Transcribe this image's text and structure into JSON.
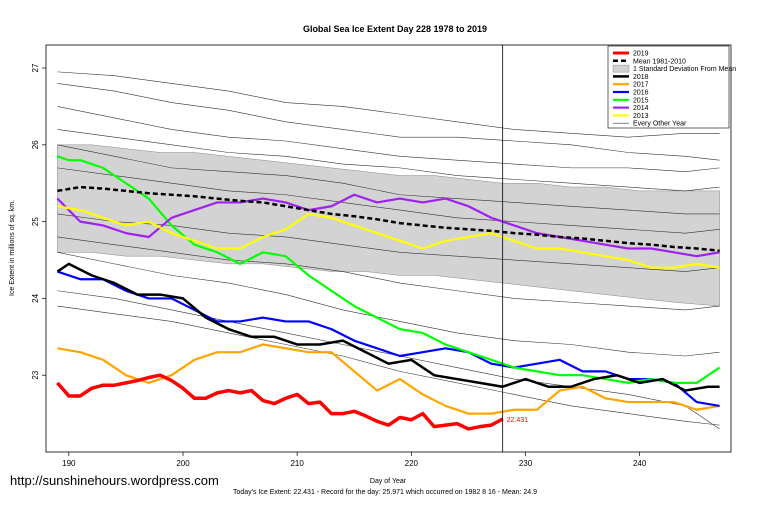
{
  "chart_data": {
    "type": "line",
    "title": "Global Sea Ice Extent Day 228 1978 to 2019",
    "xlabel": "Day of Year",
    "ylabel": "Ice Extent in millions of sq. km.",
    "xlim": [
      188,
      248
    ],
    "ylim": [
      22,
      27.3
    ],
    "x_ticks": [
      190,
      200,
      210,
      220,
      230,
      240
    ],
    "y_ticks": [
      23,
      24,
      25,
      26,
      27
    ],
    "grid": false,
    "legend_position": "top-right",
    "marker_day": 228,
    "credit": "http://sunshinehours.wordpress.com",
    "footer": "Today's Ice Extent: 22.431  -  Record for the day: 25.971 which occurred on 1982 8 16  -  Mean: 24.9",
    "current_value_label": "22.431",
    "band": {
      "name": "1 Standard Deviation From Mean",
      "color": "#d3d3d3",
      "x": [
        189,
        192,
        195,
        198,
        201,
        204,
        207,
        210,
        213,
        216,
        219,
        222,
        225,
        228,
        231,
        234,
        237,
        240,
        243,
        247
      ],
      "upper": [
        26.0,
        26.0,
        25.95,
        25.9,
        25.9,
        25.85,
        25.8,
        25.75,
        25.7,
        25.65,
        25.6,
        25.6,
        25.55,
        25.5,
        25.5,
        25.45,
        25.45,
        25.4,
        25.4,
        25.4
      ],
      "lower": [
        24.6,
        24.6,
        24.55,
        24.55,
        24.5,
        24.45,
        24.45,
        24.4,
        24.35,
        24.35,
        24.3,
        24.3,
        24.25,
        24.2,
        24.15,
        24.1,
        24.05,
        24.0,
        23.95,
        23.9
      ]
    },
    "series": [
      {
        "name": "2019",
        "color": "#ff0000",
        "width": 3.5,
        "dash": "",
        "x": [
          189,
          190,
          191,
          192,
          193,
          194,
          195,
          196,
          197,
          198,
          199,
          200,
          201,
          202,
          203,
          204,
          205,
          206,
          207,
          208,
          209,
          210,
          211,
          212,
          213,
          214,
          215,
          216,
          217,
          218,
          219,
          220,
          221,
          222,
          223,
          224,
          225,
          226,
          227,
          228
        ],
        "y": [
          22.9,
          22.73,
          22.73,
          22.83,
          22.87,
          22.87,
          22.9,
          22.93,
          22.97,
          23.0,
          22.93,
          22.83,
          22.7,
          22.7,
          22.77,
          22.8,
          22.77,
          22.8,
          22.67,
          22.63,
          22.7,
          22.75,
          22.63,
          22.65,
          22.5,
          22.5,
          22.53,
          22.47,
          22.4,
          22.35,
          22.45,
          22.42,
          22.5,
          22.33,
          22.35,
          22.37,
          22.3,
          22.33,
          22.35,
          22.43
        ]
      },
      {
        "name": "Mean 1981-2010",
        "color": "#000000",
        "width": 2.5,
        "dash": "5,3",
        "x": [
          189,
          191,
          193,
          195,
          197,
          199,
          201,
          203,
          205,
          207,
          209,
          211,
          213,
          215,
          217,
          219,
          221,
          223,
          225,
          227,
          229,
          231,
          233,
          235,
          237,
          239,
          241,
          243,
          245,
          247
        ],
        "y": [
          25.4,
          25.45,
          25.43,
          25.4,
          25.37,
          25.35,
          25.33,
          25.3,
          25.27,
          25.25,
          25.2,
          25.15,
          25.1,
          25.07,
          25.03,
          24.98,
          24.95,
          24.92,
          24.9,
          24.88,
          24.85,
          24.83,
          24.8,
          24.78,
          24.75,
          24.72,
          24.7,
          24.67,
          24.65,
          24.62
        ]
      },
      {
        "name": "2018",
        "color": "#000000",
        "width": 2.5,
        "dash": "",
        "x": [
          189,
          190,
          192,
          194,
          196,
          198,
          200,
          202,
          204,
          206,
          208,
          210,
          212,
          214,
          216,
          218,
          220,
          221,
          222,
          224,
          226,
          228,
          230,
          232,
          234,
          236,
          238,
          240,
          242,
          244,
          246,
          247
        ],
        "y": [
          24.35,
          24.45,
          24.3,
          24.2,
          24.05,
          24.05,
          24.0,
          23.75,
          23.6,
          23.5,
          23.5,
          23.4,
          23.4,
          23.45,
          23.3,
          23.15,
          23.2,
          23.1,
          23.0,
          22.95,
          22.9,
          22.85,
          22.95,
          22.85,
          22.85,
          22.95,
          23.0,
          22.9,
          22.95,
          22.8,
          22.85,
          22.85
        ]
      },
      {
        "name": "2017",
        "color": "#ffa500",
        "width": 2.2,
        "dash": "",
        "x": [
          189,
          191,
          193,
          195,
          197,
          199,
          201,
          203,
          205,
          207,
          209,
          211,
          213,
          215,
          217,
          219,
          221,
          223,
          225,
          227,
          229,
          231,
          233,
          235,
          237,
          239,
          241,
          243,
          245,
          247
        ],
        "y": [
          23.35,
          23.3,
          23.2,
          23.0,
          22.9,
          23.0,
          23.2,
          23.3,
          23.3,
          23.4,
          23.35,
          23.3,
          23.3,
          23.05,
          22.8,
          22.95,
          22.75,
          22.6,
          22.5,
          22.5,
          22.55,
          22.55,
          22.8,
          22.85,
          22.7,
          22.65,
          22.65,
          22.65,
          22.55,
          22.6
        ]
      },
      {
        "name": "2016",
        "color": "#0000ff",
        "width": 2.2,
        "dash": "",
        "x": [
          189,
          191,
          193,
          195,
          197,
          199,
          201,
          203,
          205,
          207,
          209,
          211,
          213,
          215,
          217,
          219,
          221,
          223,
          225,
          227,
          229,
          231,
          233,
          235,
          237,
          239,
          241,
          243,
          245,
          247
        ],
        "y": [
          24.35,
          24.25,
          24.25,
          24.1,
          24.0,
          24.0,
          23.85,
          23.7,
          23.7,
          23.75,
          23.7,
          23.7,
          23.6,
          23.45,
          23.35,
          23.25,
          23.3,
          23.35,
          23.3,
          23.15,
          23.1,
          23.15,
          23.2,
          23.05,
          23.05,
          22.95,
          22.95,
          22.9,
          22.65,
          22.6
        ]
      },
      {
        "name": "2015",
        "color": "#00ff00",
        "width": 2.2,
        "dash": "",
        "x": [
          189,
          190,
          191,
          193,
          195,
          197,
          199,
          201,
          203,
          205,
          207,
          209,
          211,
          213,
          215,
          217,
          219,
          221,
          223,
          225,
          227,
          229,
          231,
          233,
          235,
          237,
          239,
          241,
          243,
          245,
          247
        ],
        "y": [
          25.85,
          25.8,
          25.8,
          25.7,
          25.5,
          25.3,
          24.95,
          24.7,
          24.6,
          24.45,
          24.6,
          24.55,
          24.3,
          24.1,
          23.9,
          23.75,
          23.6,
          23.55,
          23.4,
          23.3,
          23.2,
          23.1,
          23.05,
          23.0,
          23.0,
          22.95,
          22.9,
          22.95,
          22.9,
          22.9,
          23.1
        ]
      },
      {
        "name": "2014",
        "color": "#a020f0",
        "width": 2.2,
        "dash": "",
        "x": [
          189,
          191,
          193,
          195,
          197,
          199,
          201,
          203,
          205,
          207,
          209,
          211,
          213,
          215,
          217,
          219,
          221,
          223,
          225,
          227,
          229,
          231,
          233,
          235,
          237,
          239,
          241,
          243,
          245,
          247
        ],
        "y": [
          25.3,
          25.0,
          24.95,
          24.85,
          24.8,
          25.05,
          25.15,
          25.25,
          25.25,
          25.3,
          25.25,
          25.15,
          25.2,
          25.35,
          25.25,
          25.3,
          25.25,
          25.3,
          25.2,
          25.05,
          24.95,
          24.85,
          24.8,
          24.75,
          24.7,
          24.65,
          24.65,
          24.6,
          24.55,
          24.6
        ]
      },
      {
        "name": "2013",
        "color": "#ffff00",
        "width": 2.2,
        "dash": "",
        "x": [
          189,
          191,
          193,
          195,
          197,
          199,
          201,
          203,
          205,
          207,
          209,
          211,
          213,
          215,
          217,
          219,
          221,
          223,
          225,
          227,
          229,
          231,
          233,
          235,
          237,
          239,
          241,
          243,
          245,
          247
        ],
        "y": [
          25.2,
          25.15,
          25.05,
          24.95,
          25.0,
          24.85,
          24.75,
          24.65,
          24.65,
          24.8,
          24.9,
          25.1,
          25.05,
          24.95,
          24.85,
          24.75,
          24.65,
          24.75,
          24.8,
          24.85,
          24.75,
          24.65,
          24.65,
          24.6,
          24.55,
          24.5,
          24.4,
          24.4,
          24.45,
          24.4
        ]
      },
      {
        "name": "Every Other Year",
        "color": "#333333",
        "width": 0.6,
        "dash": "",
        "x": [
          189,
          194,
          199,
          204,
          209,
          214,
          219,
          224,
          229,
          234,
          239,
          244,
          247
        ],
        "y": [
          26.8,
          26.7,
          26.55,
          26.45,
          26.3,
          26.2,
          26.1,
          26.1,
          26.05,
          26.0,
          25.9,
          25.85,
          25.8
        ]
      },
      {
        "name": "",
        "color": "#333333",
        "width": 0.6,
        "dash": "",
        "x": [
          189,
          194,
          199,
          204,
          209,
          214,
          219,
          224,
          229,
          234,
          239,
          244,
          247
        ],
        "y": [
          26.95,
          26.9,
          26.8,
          26.7,
          26.55,
          26.5,
          26.4,
          26.3,
          26.2,
          26.15,
          26.1,
          26.15,
          26.15
        ]
      },
      {
        "name": "",
        "color": "#333333",
        "width": 0.6,
        "dash": "",
        "x": [
          189,
          194,
          199,
          204,
          209,
          214,
          219,
          224,
          229,
          234,
          239,
          244,
          247
        ],
        "y": [
          26.5,
          26.35,
          26.2,
          26.1,
          26.05,
          25.95,
          25.85,
          25.8,
          25.75,
          25.7,
          25.7,
          25.65,
          25.7
        ]
      },
      {
        "name": "",
        "color": "#333333",
        "width": 0.6,
        "dash": "",
        "x": [
          189,
          194,
          199,
          204,
          209,
          214,
          219,
          224,
          229,
          234,
          239,
          244,
          247
        ],
        "y": [
          26.2,
          26.1,
          26.0,
          25.9,
          25.85,
          25.75,
          25.7,
          25.6,
          25.55,
          25.5,
          25.45,
          25.4,
          25.45
        ]
      },
      {
        "name": "",
        "color": "#333333",
        "width": 0.6,
        "dash": "",
        "x": [
          189,
          194,
          199,
          204,
          209,
          214,
          219,
          224,
          229,
          234,
          239,
          244,
          247
        ],
        "y": [
          26.0,
          25.85,
          25.7,
          25.65,
          25.6,
          25.5,
          25.35,
          25.3,
          25.25,
          25.2,
          25.15,
          25.1,
          25.1
        ]
      },
      {
        "name": "",
        "color": "#333333",
        "width": 0.6,
        "dash": "",
        "x": [
          189,
          194,
          199,
          204,
          209,
          214,
          219,
          224,
          229,
          234,
          239,
          244,
          247
        ],
        "y": [
          25.7,
          25.6,
          25.5,
          25.4,
          25.35,
          25.25,
          25.15,
          25.05,
          25.0,
          24.95,
          24.9,
          24.85,
          24.9
        ]
      },
      {
        "name": "",
        "color": "#333333",
        "width": 0.6,
        "dash": "",
        "x": [
          189,
          194,
          199,
          204,
          209,
          214,
          219,
          224,
          229,
          234,
          239,
          244,
          247
        ],
        "y": [
          25.1,
          25.0,
          24.95,
          24.85,
          24.8,
          24.7,
          24.6,
          24.55,
          24.5,
          24.45,
          24.4,
          24.35,
          24.4
        ]
      },
      {
        "name": "",
        "color": "#333333",
        "width": 0.6,
        "dash": "",
        "x": [
          189,
          194,
          199,
          204,
          209,
          214,
          219,
          224,
          229,
          234,
          239,
          244,
          247
        ],
        "y": [
          24.8,
          24.7,
          24.6,
          24.5,
          24.45,
          24.35,
          24.2,
          24.1,
          24.0,
          23.95,
          23.9,
          23.85,
          23.9
        ]
      },
      {
        "name": "",
        "color": "#333333",
        "width": 0.6,
        "dash": "",
        "x": [
          189,
          194,
          199,
          204,
          209,
          214,
          219,
          224,
          229,
          234,
          239,
          244,
          247
        ],
        "y": [
          24.6,
          24.45,
          24.3,
          24.2,
          24.05,
          23.85,
          23.7,
          23.55,
          23.45,
          23.4,
          23.3,
          23.25,
          23.3
        ]
      },
      {
        "name": "",
        "color": "#333333",
        "width": 0.6,
        "dash": "",
        "x": [
          189,
          194,
          199,
          204,
          209,
          214,
          219,
          224,
          229,
          234,
          239,
          244,
          247
        ],
        "y": [
          24.1,
          24.0,
          23.85,
          23.7,
          23.55,
          23.4,
          23.25,
          23.1,
          22.95,
          22.85,
          22.75,
          22.6,
          22.3
        ]
      },
      {
        "name": "",
        "color": "#333333",
        "width": 0.6,
        "dash": "",
        "x": [
          189,
          194,
          199,
          204,
          209,
          214,
          219,
          224,
          229,
          234,
          239,
          244,
          247
        ],
        "y": [
          23.9,
          23.8,
          23.7,
          23.55,
          23.4,
          23.25,
          23.05,
          22.9,
          22.75,
          22.6,
          22.5,
          22.4,
          22.35
        ]
      }
    ]
  }
}
